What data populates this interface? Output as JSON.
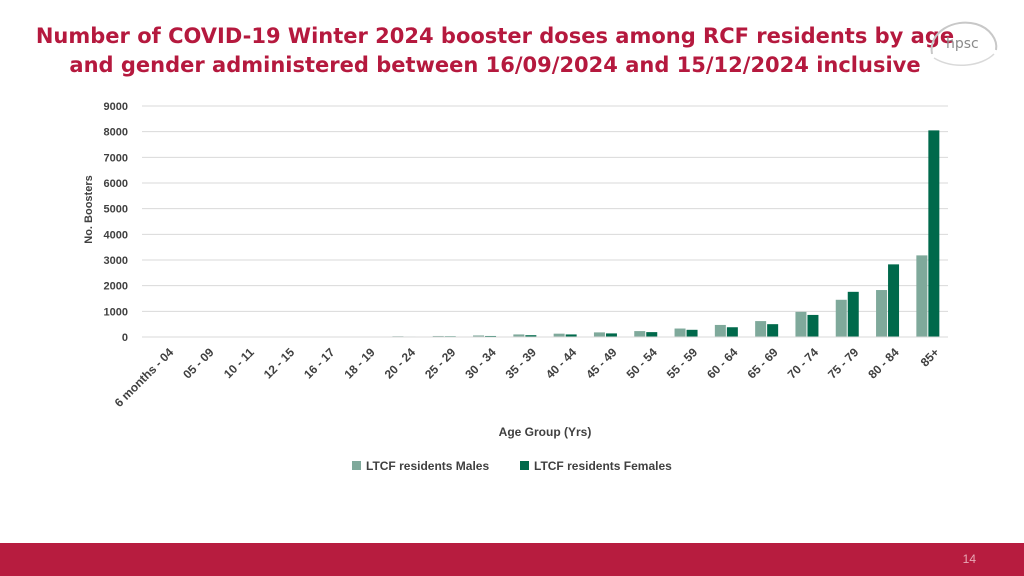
{
  "title": "Number of COVID-19 Winter 2024 booster doses among RCF residents by age and gender administered between 16/09/2024 and 15/12/2024 inclusive",
  "logo_text": "hpsc",
  "page_number": "14",
  "colors": {
    "title": "#b5193e",
    "males": "#7fa99b",
    "females": "#00694b",
    "footer": "#b71c3f"
  },
  "chart_data": {
    "type": "bar",
    "title": "",
    "xlabel": "Age Group (Yrs)",
    "ylabel": "No. Boosters",
    "ylim": [
      0,
      9000
    ],
    "yticks": [
      "0",
      "1000",
      "2000",
      "3000",
      "4000",
      "5000",
      "6000",
      "7000",
      "8000",
      "9000"
    ],
    "grid": true,
    "legend_position": "bottom",
    "categories": [
      "6 months - 04",
      "05 - 09",
      "10 - 11",
      "12 - 15",
      "16 - 17",
      "18 - 19",
      "20 - 24",
      "25 - 29",
      "30 - 34",
      "35 - 39",
      "40 - 44",
      "45 - 49",
      "50 - 54",
      "55 - 59",
      "60 - 64",
      "65 - 69",
      "70 - 74",
      "75 - 79",
      "80 - 84",
      "85+"
    ],
    "series": [
      {
        "name": "LTCF residents Males",
        "values": [
          0,
          0,
          0,
          0,
          0,
          0,
          30,
          40,
          60,
          100,
          130,
          180,
          230,
          330,
          470,
          620,
          980,
          1450,
          1830,
          3180
        ]
      },
      {
        "name": "LTCF residents Females",
        "values": [
          0,
          0,
          0,
          0,
          0,
          0,
          20,
          30,
          40,
          70,
          100,
          140,
          190,
          280,
          380,
          500,
          860,
          1760,
          2830,
          8050
        ]
      }
    ]
  }
}
